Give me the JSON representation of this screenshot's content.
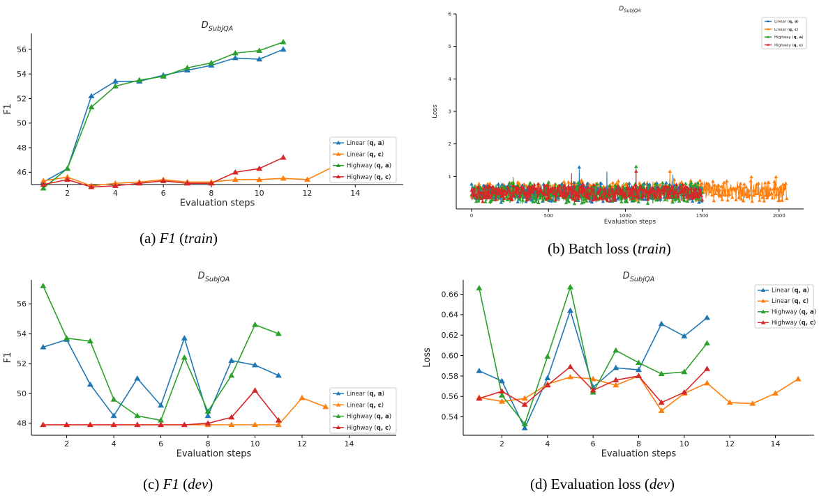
{
  "series_styles": [
    {
      "color": "#1f77b4"
    },
    {
      "color": "#ff7f0e"
    },
    {
      "color": "#2ca02c"
    },
    {
      "color": "#d62728"
    }
  ],
  "chart_data": [
    {
      "id": "a",
      "type": "line",
      "title": "D_SubjQA",
      "xlabel": "Evaluation steps",
      "ylabel": "F1",
      "xlim": [
        0.5,
        16
      ],
      "ylim": [
        45,
        57.3
      ],
      "xticks": [
        2,
        4,
        6,
        8,
        10,
        12,
        14
      ],
      "yticks": [
        46,
        48,
        50,
        52,
        54,
        56
      ],
      "ytick_labels": [
        "46",
        "48",
        "50",
        "52",
        "54",
        "56"
      ],
      "legend": "lower-right",
      "caption": {
        "prefix": "(a) ",
        "math": "F1",
        "mid": " (",
        "em": "train",
        "suffix": ")"
      },
      "series": [
        {
          "name": "Linear (q, a)",
          "x": [
            1,
            2,
            3,
            4,
            5,
            6,
            7,
            8,
            9,
            10,
            11
          ],
          "y": [
            45.2,
            46.3,
            52.2,
            53.4,
            53.4,
            53.9,
            54.3,
            54.7,
            55.3,
            55.2,
            56.0
          ]
        },
        {
          "name": "Linear (q, c)",
          "x": [
            1,
            2,
            3,
            4,
            5,
            6,
            7,
            8,
            9,
            10,
            11,
            12,
            15
          ],
          "y": [
            45.3,
            45.6,
            44.9,
            45.1,
            45.2,
            45.4,
            45.2,
            45.2,
            45.4,
            45.4,
            45.5,
            45.4,
            48.3
          ]
        },
        {
          "name": "Highway (q, a)",
          "x": [
            1,
            2,
            3,
            4,
            5,
            6,
            7,
            8,
            9,
            10,
            11
          ],
          "y": [
            44.7,
            46.3,
            51.3,
            53.0,
            53.5,
            53.8,
            54.5,
            54.9,
            55.7,
            55.9,
            56.6
          ]
        },
        {
          "name": "Highway (q, c)",
          "x": [
            1,
            2,
            3,
            4,
            5,
            6,
            7,
            8,
            9,
            10,
            11
          ],
          "y": [
            45.0,
            45.4,
            44.8,
            44.9,
            45.1,
            45.3,
            45.1,
            45.1,
            46.0,
            46.3,
            47.2
          ]
        }
      ]
    },
    {
      "id": "b",
      "type": "line",
      "title": "D_SubjQA",
      "xlabel": "Evaluation steps",
      "ylabel": "Loss",
      "xlim": [
        -100,
        2160
      ],
      "ylim": [
        0,
        6
      ],
      "xticks": [
        0,
        500,
        1000,
        1500,
        2000
      ],
      "yticks": [
        1,
        2,
        3,
        4,
        5,
        6
      ],
      "ytick_labels": [
        "1",
        "2",
        "3",
        "4",
        "5",
        "6"
      ],
      "legend": "top-right",
      "caption": {
        "prefix": "(b) Batch loss (",
        "math": "",
        "mid": "",
        "em": "train",
        "suffix": ")"
      },
      "series": [
        {
          "name": "Linear (q, a)",
          "x_range": [
            0,
            1500
          ],
          "mean": 0.5,
          "spread": 0.25,
          "spikes": [
            [
              700,
              1.28
            ],
            [
              880,
              1.15
            ],
            [
              1310,
              1.05
            ]
          ]
        },
        {
          "name": "Linear (q, c)",
          "x_range": [
            0,
            2050
          ],
          "mean": 0.55,
          "spread": 0.28,
          "spikes": [
            [
              1290,
              1.15
            ],
            [
              1820,
              0.98
            ],
            [
              1980,
              0.98
            ]
          ]
        },
        {
          "name": "Highway (q, a)",
          "x_range": [
            0,
            1500
          ],
          "mean": 0.48,
          "spread": 0.28,
          "spikes": [
            [
              1070,
              1.3
            ],
            [
              270,
              0.98
            ]
          ]
        },
        {
          "name": "Highway (q, c)",
          "x_range": [
            0,
            1500
          ],
          "mean": 0.5,
          "spread": 0.22,
          "spikes": [
            [
              650,
              1.1
            ],
            [
              1070,
              1.15
            ]
          ]
        }
      ]
    },
    {
      "id": "c",
      "type": "line",
      "title": "D_SubjQA",
      "xlabel": "Evaluation steps",
      "ylabel": "F1",
      "xlim": [
        0.5,
        16
      ],
      "ylim": [
        47.2,
        57.6
      ],
      "xticks": [
        2,
        4,
        6,
        8,
        10,
        12,
        14
      ],
      "yticks": [
        48,
        50,
        52,
        54,
        56
      ],
      "ytick_labels": [
        "48",
        "50",
        "52",
        "54",
        "56"
      ],
      "legend": "lower-right",
      "caption": {
        "prefix": "(c) ",
        "math": "F1",
        "mid": " (",
        "em": "dev",
        "suffix": ")"
      },
      "series": [
        {
          "name": "Linear (q, a)",
          "x": [
            1,
            2,
            3,
            4,
            5,
            6,
            7,
            8,
            9,
            10,
            11
          ],
          "y": [
            53.1,
            53.6,
            50.6,
            48.5,
            51.0,
            49.2,
            53.7,
            48.5,
            52.2,
            51.9,
            51.2
          ]
        },
        {
          "name": "Linear (q, c)",
          "x": [
            1,
            2,
            3,
            4,
            5,
            6,
            7,
            8,
            9,
            10,
            11,
            12,
            13
          ],
          "y": [
            47.9,
            47.9,
            47.9,
            47.9,
            47.9,
            47.9,
            47.9,
            47.9,
            47.9,
            47.9,
            47.9,
            49.7,
            49.1
          ]
        },
        {
          "name": "Highway (q, a)",
          "x": [
            1,
            2,
            3,
            4,
            5,
            6,
            7,
            8,
            9,
            10,
            11
          ],
          "y": [
            57.2,
            53.7,
            53.5,
            49.6,
            48.5,
            48.2,
            52.4,
            48.8,
            51.2,
            54.6,
            54.0
          ]
        },
        {
          "name": "Highway (q, c)",
          "x": [
            1,
            2,
            3,
            4,
            5,
            6,
            7,
            8,
            9,
            10,
            11
          ],
          "y": [
            47.9,
            47.9,
            47.9,
            47.9,
            47.9,
            47.9,
            47.9,
            48.0,
            48.4,
            50.2,
            48.2
          ]
        }
      ]
    },
    {
      "id": "d",
      "type": "line",
      "title": "D_SubjQA",
      "xlabel": "Evaluation steps",
      "ylabel": "Loss",
      "xlim": [
        0.3,
        15.7
      ],
      "ylim": [
        0.522,
        0.674
      ],
      "xticks": [
        2,
        4,
        6,
        8,
        10,
        12,
        14
      ],
      "yticks": [
        0.54,
        0.56,
        0.58,
        0.6,
        0.62,
        0.64,
        0.66
      ],
      "ytick_labels": [
        "0.54",
        "0.56",
        "0.58",
        "0.60",
        "0.62",
        "0.64",
        "0.66"
      ],
      "legend": "top-right",
      "caption": {
        "prefix": "(d) Evaluation loss (",
        "math": "",
        "mid": "",
        "em": "dev",
        "suffix": ")"
      },
      "series": [
        {
          "name": "Linear (q, a)",
          "x": [
            1,
            2,
            3,
            4,
            5,
            6,
            7,
            8,
            9,
            10,
            11
          ],
          "y": [
            0.585,
            0.575,
            0.529,
            0.578,
            0.644,
            0.569,
            0.588,
            0.586,
            0.631,
            0.619,
            0.637
          ]
        },
        {
          "name": "Linear (q, c)",
          "x": [
            1,
            2,
            3,
            4,
            5,
            6,
            7,
            8,
            9,
            10,
            11,
            12,
            13,
            14,
            15
          ],
          "y": [
            0.559,
            0.555,
            0.558,
            0.572,
            0.579,
            0.577,
            0.571,
            0.58,
            0.546,
            0.563,
            0.573,
            0.554,
            0.553,
            0.563,
            0.577
          ]
        },
        {
          "name": "Highway (q, a)",
          "x": [
            1,
            2,
            3,
            4,
            5,
            6,
            7,
            8,
            9,
            10,
            11
          ],
          "y": [
            0.666,
            0.561,
            0.533,
            0.599,
            0.667,
            0.564,
            0.605,
            0.593,
            0.582,
            0.584,
            0.612
          ]
        },
        {
          "name": "Highway (q, c)",
          "x": [
            1,
            2,
            3,
            4,
            5,
            6,
            7,
            8,
            9,
            10,
            11
          ],
          "y": [
            0.558,
            0.565,
            0.552,
            0.571,
            0.589,
            0.566,
            0.576,
            0.58,
            0.554,
            0.564,
            0.587
          ]
        }
      ]
    }
  ],
  "legend_prefix": [
    "Linear",
    "Linear",
    "Highway",
    "Highway"
  ],
  "legend_args": [
    "q, a",
    "q, c",
    "q, a",
    "q, c"
  ]
}
